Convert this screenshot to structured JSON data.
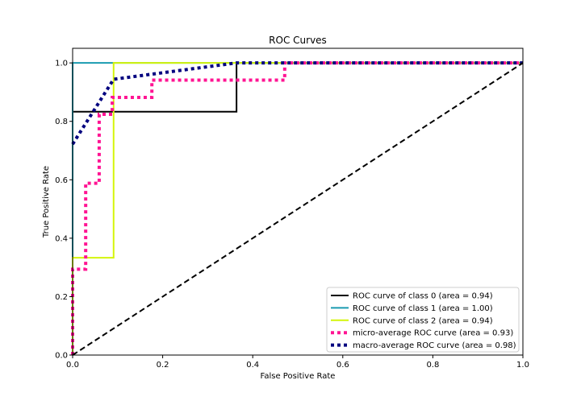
{
  "chart_data": {
    "type": "line",
    "title": "ROC Curves",
    "xlabel": "False Positive Rate",
    "ylabel": "True Positive Rate",
    "xlim": [
      0.0,
      1.0
    ],
    "ylim": [
      0.0,
      1.05
    ],
    "xticks": [
      0.0,
      0.2,
      0.4,
      0.6,
      0.8,
      1.0
    ],
    "yticks": [
      0.0,
      0.2,
      0.4,
      0.6,
      0.8,
      1.0
    ],
    "xtick_labels": [
      "0.0",
      "0.2",
      "0.4",
      "0.6",
      "0.8",
      "1.0"
    ],
    "ytick_labels": [
      "0.0",
      "0.2",
      "0.4",
      "0.6",
      "0.8",
      "1.0"
    ],
    "grid": false,
    "legend_position": "lower-right",
    "series": [
      {
        "name": "ROC curve of class 0 (area = 0.94)",
        "color": "#000000",
        "style": "solid",
        "x": [
          0.0,
          0.0,
          0.0,
          0.364,
          0.364,
          1.0
        ],
        "y": [
          0.0,
          0.0,
          0.833,
          0.833,
          1.0,
          1.0
        ]
      },
      {
        "name": "ROC curve of class 1 (area = 1.00)",
        "color": "#1a9bb0",
        "style": "solid",
        "x": [
          0.0,
          0.0,
          0.0,
          1.0
        ],
        "y": [
          0.0,
          1.0,
          1.0,
          1.0
        ]
      },
      {
        "name": "ROC curve of class 2 (area = 0.94)",
        "color": "#d4f50a",
        "style": "solid",
        "x": [
          0.0,
          0.0,
          0.091,
          0.091,
          1.0
        ],
        "y": [
          0.0,
          0.333,
          0.333,
          1.0,
          1.0
        ]
      },
      {
        "name": "micro-average ROC curve (area = 0.93)",
        "color": "#ff1493",
        "style": "dotted",
        "x": [
          0.0,
          0.0,
          0.029,
          0.029,
          0.059,
          0.059,
          0.088,
          0.088,
          0.176,
          0.176,
          0.471,
          0.471,
          1.0
        ],
        "y": [
          0.0,
          0.294,
          0.294,
          0.588,
          0.588,
          0.824,
          0.824,
          0.882,
          0.882,
          0.941,
          0.941,
          1.0,
          1.0
        ]
      },
      {
        "name": "macro-average ROC curve (area = 0.98)",
        "color": "#00007f",
        "style": "dotted",
        "x": [
          0.0,
          0.091,
          0.364,
          1.0
        ],
        "y": [
          0.722,
          0.944,
          1.0,
          1.0
        ]
      },
      {
        "name": "",
        "color": "#000000",
        "style": "dashed",
        "x": [
          0.0,
          1.0
        ],
        "y": [
          0.0,
          1.0
        ]
      }
    ]
  }
}
